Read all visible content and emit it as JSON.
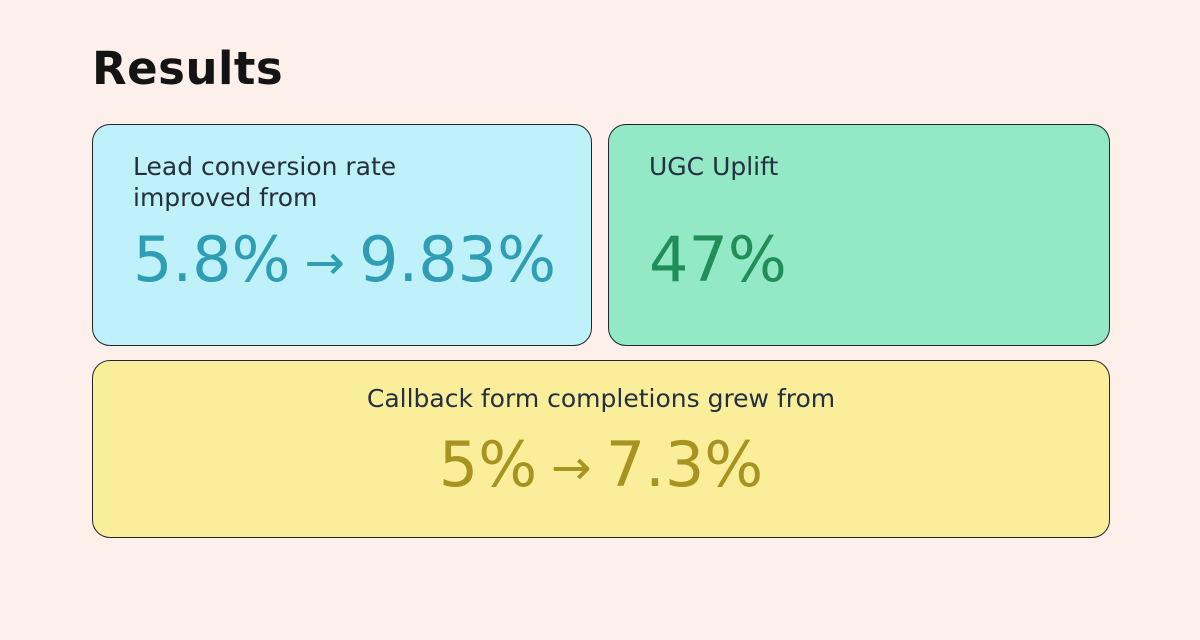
{
  "page": {
    "title": "Results",
    "background_color": "#FDF0EA",
    "border_color": "#20262B",
    "label_text_color": "#243040",
    "title_color": "#141414"
  },
  "cards": [
    {
      "id": "lead-conversion",
      "label_lines": [
        "Lead conversion rate",
        "improved from"
      ],
      "value_from": "5.8%",
      "arrow": "→",
      "value_to": "9.83%",
      "background_color": "#BFF1FB",
      "value_color": "#2F9DB4"
    },
    {
      "id": "ugc-uplift",
      "label_lines": [
        "UGC Uplift"
      ],
      "value": "47%",
      "background_color": "#93E9C6",
      "value_color": "#1F8E57"
    },
    {
      "id": "callback-form",
      "label_lines": [
        "Callback form completions grew from"
      ],
      "value_from": "5%",
      "arrow": "→",
      "value_to": "7.3%",
      "background_color": "#FBEE9B",
      "value_color": "#A7931F"
    }
  ]
}
